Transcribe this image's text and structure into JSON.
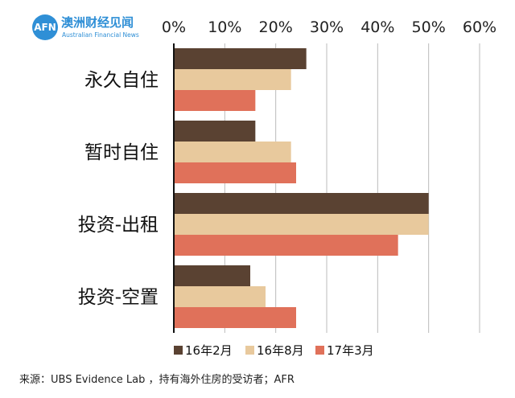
{
  "logo": {
    "abbr": "AFN",
    "name_cn": "澳洲财经见闻",
    "name_en": "Australian Financial News"
  },
  "chart_data": {
    "type": "bar",
    "orientation": "horizontal",
    "title": "",
    "xlabel": "",
    "ylabel": "",
    "xlim": [
      0,
      60
    ],
    "x_ticks": [
      "0%",
      "10%",
      "20%",
      "30%",
      "40%",
      "50%",
      "60%"
    ],
    "x_axis_position": "top",
    "categories": [
      "永久自住",
      "暂时自住",
      "投资-出租",
      "投资-空置"
    ],
    "series": [
      {
        "name": "16年2月",
        "color": "#5a4232",
        "values": [
          26,
          16,
          50,
          15
        ]
      },
      {
        "name": "16年8月",
        "color": "#e8c99d",
        "values": [
          23,
          23,
          50,
          18
        ]
      },
      {
        "name": "17年3月",
        "color": "#e0715a",
        "values": [
          16,
          24,
          44,
          24
        ]
      }
    ],
    "grid": true,
    "legend_position": "bottom"
  },
  "source": "来源：UBS Evidence Lab ，持有海外住房的受访者；AFR"
}
